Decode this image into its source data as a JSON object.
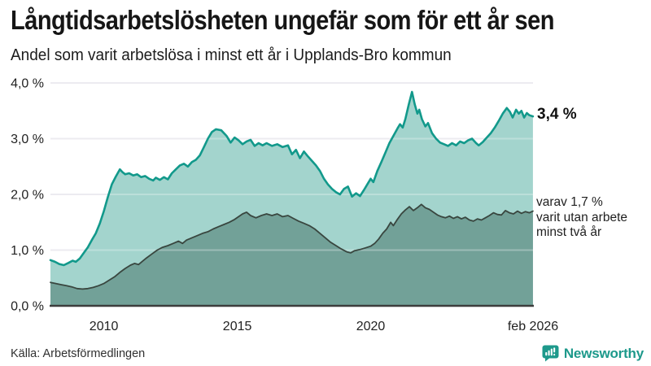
{
  "header": {
    "title": "Långtidsarbetslösheten ungefär som för ett år sen",
    "subtitle": "Andel som varit arbetslösa i minst ett år i Upplands-Bro kommun"
  },
  "annotations": {
    "latest_value": "3,4 %",
    "secondary_line1": "varav 1,7 %",
    "secondary_line2": "varit utan arbete",
    "secondary_line3": "minst två år"
  },
  "footer": {
    "source": "Källa: Arbetsförmedlingen",
    "brand": "Newsworthy"
  },
  "colors": {
    "accent_teal": "#12998b",
    "fill_light": "#95cec5",
    "fill_dark": "#6f9e96",
    "line_dark": "#39463f",
    "gridline": "#e4e3ea",
    "baseline": "#3d3d3d",
    "axis_text": "#222222",
    "brand_teal": "#1d998b"
  },
  "chart_data": {
    "type": "area",
    "title": "Andel som varit arbetslösa i minst ett år i Upplands-Bro kommun",
    "xlabel": "",
    "ylabel": "",
    "x_domain": [
      2008.0,
      2026.083
    ],
    "ylim": [
      0,
      4
    ],
    "grid": true,
    "legend_position": "right-annotations",
    "y_ticks": [
      {
        "v": 0,
        "label": "0,0 %"
      },
      {
        "v": 1,
        "label": "1,0 %"
      },
      {
        "v": 2,
        "label": "2,0 %"
      },
      {
        "v": 3,
        "label": "3,0 %"
      },
      {
        "v": 4,
        "label": "4,0 %"
      }
    ],
    "x_ticks": [
      {
        "v": 2010,
        "label": "2010"
      },
      {
        "v": 2015,
        "label": "2015"
      },
      {
        "v": 2020,
        "label": "2020"
      },
      {
        "v": 2026.083,
        "label": "feb 2026"
      }
    ],
    "series": [
      {
        "name": "Arbetslösa minst ett år",
        "latest_label": "3,4 %",
        "stroke": "#12998b",
        "stroke_width": 2.6,
        "fill": "#95cec5",
        "fill_opacity": 0.87,
        "points": [
          [
            2008.0,
            0.82
          ],
          [
            2008.17,
            0.79
          ],
          [
            2008.33,
            0.75
          ],
          [
            2008.5,
            0.73
          ],
          [
            2008.67,
            0.77
          ],
          [
            2008.83,
            0.81
          ],
          [
            2008.95,
            0.79
          ],
          [
            2009.1,
            0.85
          ],
          [
            2009.25,
            0.95
          ],
          [
            2009.4,
            1.05
          ],
          [
            2009.55,
            1.18
          ],
          [
            2009.7,
            1.3
          ],
          [
            2009.85,
            1.48
          ],
          [
            2010.0,
            1.7
          ],
          [
            2010.15,
            1.95
          ],
          [
            2010.3,
            2.18
          ],
          [
            2010.45,
            2.32
          ],
          [
            2010.6,
            2.45
          ],
          [
            2010.7,
            2.4
          ],
          [
            2010.8,
            2.36
          ],
          [
            2010.95,
            2.38
          ],
          [
            2011.1,
            2.34
          ],
          [
            2011.25,
            2.36
          ],
          [
            2011.4,
            2.31
          ],
          [
            2011.55,
            2.33
          ],
          [
            2011.7,
            2.28
          ],
          [
            2011.85,
            2.25
          ],
          [
            2011.95,
            2.3
          ],
          [
            2012.1,
            2.26
          ],
          [
            2012.25,
            2.31
          ],
          [
            2012.4,
            2.27
          ],
          [
            2012.55,
            2.38
          ],
          [
            2012.7,
            2.45
          ],
          [
            2012.85,
            2.52
          ],
          [
            2013.0,
            2.55
          ],
          [
            2013.15,
            2.5
          ],
          [
            2013.3,
            2.58
          ],
          [
            2013.45,
            2.62
          ],
          [
            2013.6,
            2.7
          ],
          [
            2013.75,
            2.85
          ],
          [
            2013.9,
            3.0
          ],
          [
            2014.05,
            3.12
          ],
          [
            2014.2,
            3.17
          ],
          [
            2014.4,
            3.15
          ],
          [
            2014.6,
            3.05
          ],
          [
            2014.75,
            2.93
          ],
          [
            2014.9,
            3.02
          ],
          [
            2015.05,
            2.97
          ],
          [
            2015.2,
            2.9
          ],
          [
            2015.35,
            2.95
          ],
          [
            2015.5,
            2.98
          ],
          [
            2015.65,
            2.87
          ],
          [
            2015.8,
            2.92
          ],
          [
            2015.95,
            2.88
          ],
          [
            2016.1,
            2.92
          ],
          [
            2016.3,
            2.87
          ],
          [
            2016.5,
            2.9
          ],
          [
            2016.7,
            2.85
          ],
          [
            2016.9,
            2.88
          ],
          [
            2017.05,
            2.72
          ],
          [
            2017.2,
            2.8
          ],
          [
            2017.35,
            2.65
          ],
          [
            2017.5,
            2.77
          ],
          [
            2017.65,
            2.68
          ],
          [
            2017.8,
            2.6
          ],
          [
            2017.95,
            2.52
          ],
          [
            2018.1,
            2.42
          ],
          [
            2018.25,
            2.28
          ],
          [
            2018.4,
            2.18
          ],
          [
            2018.55,
            2.1
          ],
          [
            2018.7,
            2.04
          ],
          [
            2018.85,
            2.0
          ],
          [
            2019.0,
            2.1
          ],
          [
            2019.15,
            2.14
          ],
          [
            2019.3,
            1.96
          ],
          [
            2019.45,
            2.02
          ],
          [
            2019.6,
            1.97
          ],
          [
            2019.75,
            2.08
          ],
          [
            2019.9,
            2.2
          ],
          [
            2020.0,
            2.28
          ],
          [
            2020.1,
            2.22
          ],
          [
            2020.25,
            2.42
          ],
          [
            2020.4,
            2.58
          ],
          [
            2020.55,
            2.75
          ],
          [
            2020.7,
            2.92
          ],
          [
            2020.85,
            3.05
          ],
          [
            2021.0,
            3.18
          ],
          [
            2021.1,
            3.26
          ],
          [
            2021.2,
            3.2
          ],
          [
            2021.3,
            3.35
          ],
          [
            2021.42,
            3.6
          ],
          [
            2021.55,
            3.84
          ],
          [
            2021.65,
            3.62
          ],
          [
            2021.75,
            3.45
          ],
          [
            2021.82,
            3.52
          ],
          [
            2021.92,
            3.35
          ],
          [
            2022.05,
            3.22
          ],
          [
            2022.15,
            3.28
          ],
          [
            2022.3,
            3.1
          ],
          [
            2022.45,
            3.0
          ],
          [
            2022.6,
            2.93
          ],
          [
            2022.75,
            2.9
          ],
          [
            2022.9,
            2.87
          ],
          [
            2023.05,
            2.92
          ],
          [
            2023.2,
            2.88
          ],
          [
            2023.35,
            2.95
          ],
          [
            2023.5,
            2.92
          ],
          [
            2023.65,
            2.97
          ],
          [
            2023.8,
            3.0
          ],
          [
            2023.95,
            2.92
          ],
          [
            2024.05,
            2.88
          ],
          [
            2024.2,
            2.94
          ],
          [
            2024.35,
            3.02
          ],
          [
            2024.5,
            3.1
          ],
          [
            2024.65,
            3.2
          ],
          [
            2024.8,
            3.32
          ],
          [
            2024.95,
            3.45
          ],
          [
            2025.1,
            3.55
          ],
          [
            2025.22,
            3.48
          ],
          [
            2025.32,
            3.38
          ],
          [
            2025.45,
            3.52
          ],
          [
            2025.55,
            3.45
          ],
          [
            2025.65,
            3.5
          ],
          [
            2025.75,
            3.38
          ],
          [
            2025.85,
            3.46
          ],
          [
            2025.95,
            3.42
          ],
          [
            2026.08,
            3.4
          ]
        ]
      },
      {
        "name": "varav utan arbete minst två år",
        "latest_label": "1,7 %",
        "stroke": "#39463f",
        "stroke_width": 1.8,
        "fill": "#6f9e96",
        "fill_opacity": 0.96,
        "points": [
          [
            2008.0,
            0.42
          ],
          [
            2008.2,
            0.4
          ],
          [
            2008.4,
            0.38
          ],
          [
            2008.6,
            0.36
          ],
          [
            2008.8,
            0.34
          ],
          [
            2009.0,
            0.31
          ],
          [
            2009.2,
            0.3
          ],
          [
            2009.4,
            0.31
          ],
          [
            2009.6,
            0.33
          ],
          [
            2009.8,
            0.36
          ],
          [
            2010.0,
            0.4
          ],
          [
            2010.2,
            0.46
          ],
          [
            2010.4,
            0.52
          ],
          [
            2010.6,
            0.6
          ],
          [
            2010.8,
            0.67
          ],
          [
            2011.0,
            0.73
          ],
          [
            2011.15,
            0.76
          ],
          [
            2011.3,
            0.74
          ],
          [
            2011.45,
            0.8
          ],
          [
            2011.6,
            0.86
          ],
          [
            2011.8,
            0.93
          ],
          [
            2012.0,
            1.0
          ],
          [
            2012.2,
            1.05
          ],
          [
            2012.4,
            1.08
          ],
          [
            2012.6,
            1.12
          ],
          [
            2012.8,
            1.16
          ],
          [
            2012.95,
            1.12
          ],
          [
            2013.1,
            1.18
          ],
          [
            2013.3,
            1.22
          ],
          [
            2013.5,
            1.26
          ],
          [
            2013.7,
            1.3
          ],
          [
            2013.9,
            1.33
          ],
          [
            2014.1,
            1.38
          ],
          [
            2014.3,
            1.42
          ],
          [
            2014.5,
            1.46
          ],
          [
            2014.7,
            1.5
          ],
          [
            2014.9,
            1.55
          ],
          [
            2015.05,
            1.6
          ],
          [
            2015.2,
            1.65
          ],
          [
            2015.35,
            1.68
          ],
          [
            2015.5,
            1.62
          ],
          [
            2015.7,
            1.58
          ],
          [
            2015.9,
            1.62
          ],
          [
            2016.1,
            1.65
          ],
          [
            2016.3,
            1.62
          ],
          [
            2016.5,
            1.65
          ],
          [
            2016.7,
            1.6
          ],
          [
            2016.9,
            1.62
          ],
          [
            2017.1,
            1.57
          ],
          [
            2017.3,
            1.52
          ],
          [
            2017.5,
            1.48
          ],
          [
            2017.7,
            1.44
          ],
          [
            2017.9,
            1.38
          ],
          [
            2018.1,
            1.3
          ],
          [
            2018.3,
            1.22
          ],
          [
            2018.5,
            1.14
          ],
          [
            2018.7,
            1.08
          ],
          [
            2018.9,
            1.02
          ],
          [
            2019.1,
            0.97
          ],
          [
            2019.25,
            0.95
          ],
          [
            2019.4,
            0.99
          ],
          [
            2019.6,
            1.01
          ],
          [
            2019.8,
            1.04
          ],
          [
            2020.0,
            1.07
          ],
          [
            2020.15,
            1.12
          ],
          [
            2020.3,
            1.2
          ],
          [
            2020.45,
            1.3
          ],
          [
            2020.6,
            1.38
          ],
          [
            2020.75,
            1.5
          ],
          [
            2020.85,
            1.44
          ],
          [
            2021.0,
            1.55
          ],
          [
            2021.15,
            1.65
          ],
          [
            2021.3,
            1.72
          ],
          [
            2021.45,
            1.78
          ],
          [
            2021.6,
            1.71
          ],
          [
            2021.75,
            1.76
          ],
          [
            2021.9,
            1.82
          ],
          [
            2022.05,
            1.76
          ],
          [
            2022.2,
            1.73
          ],
          [
            2022.35,
            1.68
          ],
          [
            2022.5,
            1.63
          ],
          [
            2022.65,
            1.6
          ],
          [
            2022.8,
            1.58
          ],
          [
            2022.95,
            1.61
          ],
          [
            2023.1,
            1.57
          ],
          [
            2023.25,
            1.6
          ],
          [
            2023.4,
            1.56
          ],
          [
            2023.55,
            1.59
          ],
          [
            2023.7,
            1.54
          ],
          [
            2023.85,
            1.52
          ],
          [
            2024.0,
            1.56
          ],
          [
            2024.15,
            1.54
          ],
          [
            2024.3,
            1.58
          ],
          [
            2024.45,
            1.62
          ],
          [
            2024.6,
            1.67
          ],
          [
            2024.75,
            1.64
          ],
          [
            2024.9,
            1.63
          ],
          [
            2025.05,
            1.71
          ],
          [
            2025.2,
            1.67
          ],
          [
            2025.35,
            1.65
          ],
          [
            2025.5,
            1.7
          ],
          [
            2025.65,
            1.66
          ],
          [
            2025.8,
            1.69
          ],
          [
            2025.95,
            1.67
          ],
          [
            2026.08,
            1.7
          ]
        ]
      }
    ]
  }
}
